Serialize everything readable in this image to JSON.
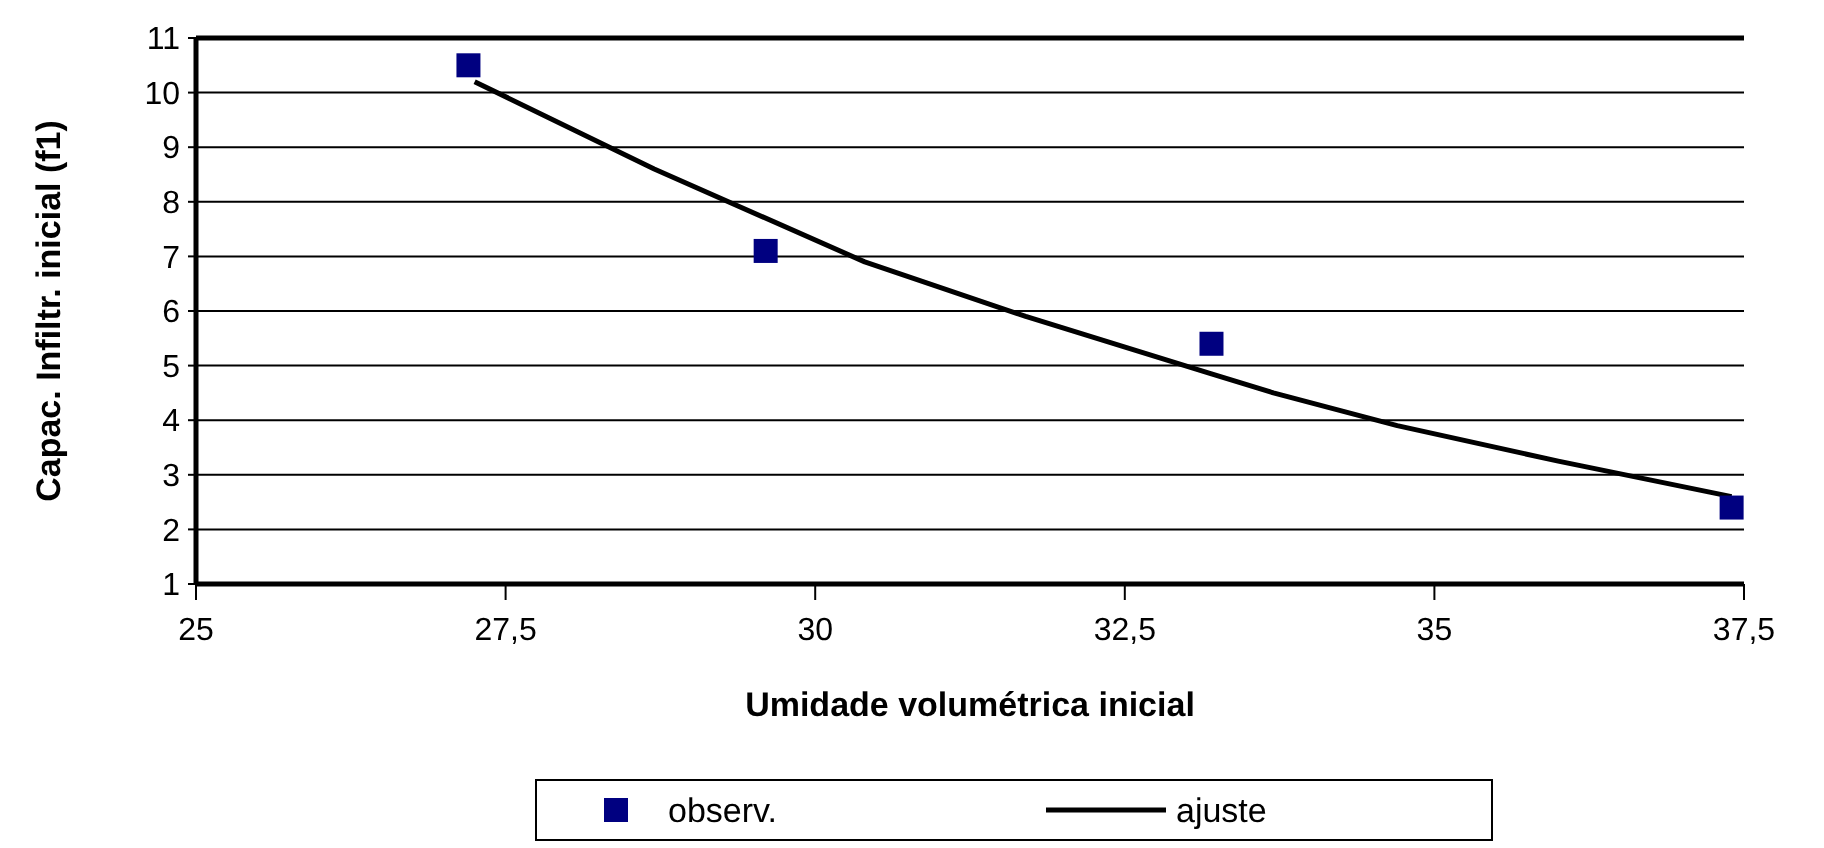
{
  "chart_data": {
    "type": "scatter",
    "xlabel": "Umidade volumétrica inicial",
    "ylabel": "Capac. Infiltr. inicial (f1)",
    "xlim": [
      25,
      37.5
    ],
    "xticks": [
      {
        "value": 25,
        "label": "25"
      },
      {
        "value": 27.5,
        "label": "27,5"
      },
      {
        "value": 30,
        "label": "30"
      },
      {
        "value": 32.5,
        "label": "32,5"
      },
      {
        "value": 35,
        "label": "35"
      },
      {
        "value": 37.5,
        "label": "37,5"
      }
    ],
    "ylim": [
      1,
      11
    ],
    "yticks": [
      1,
      2,
      3,
      4,
      5,
      6,
      7,
      8,
      9,
      10,
      11
    ],
    "grid": "y",
    "legend": "bottom",
    "series": [
      {
        "name": "observ.",
        "marker": "square",
        "color": "#000080",
        "x": [
          27.2,
          29.6,
          33.2,
          37.4
        ],
        "values": [
          10.5,
          7.1,
          5.4,
          2.4
        ]
      },
      {
        "name": "ajuste",
        "type": "line",
        "marker": "none",
        "color": "#000000",
        "x": [
          27.25,
          28.7,
          30.4,
          31.7,
          33.2,
          33.7,
          34.7,
          36.0,
          37.4
        ],
        "values": [
          10.2,
          8.6,
          6.9,
          5.9,
          4.85,
          4.5,
          3.9,
          3.25,
          2.6
        ]
      }
    ]
  }
}
